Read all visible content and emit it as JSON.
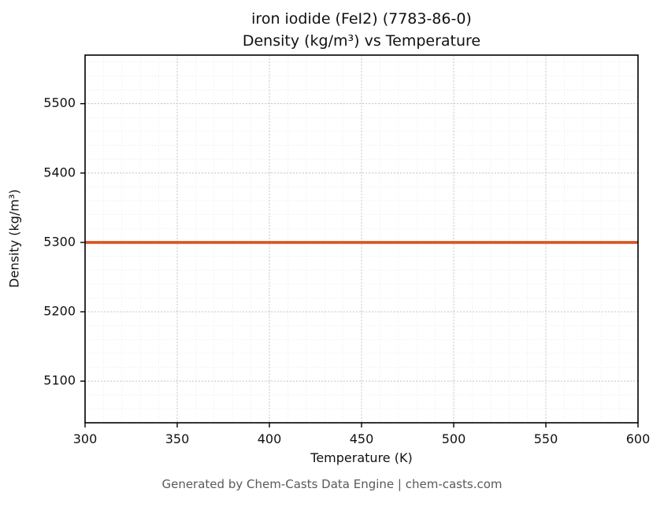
{
  "chart_data": {
    "type": "line",
    "title_line1": "iron iodide (FeI2) (7783-86-0)",
    "title_line2": "Density (kg/m³) vs Temperature",
    "xlabel": "Temperature (K)",
    "ylabel": "Density (kg/m³)",
    "x": [
      300,
      600
    ],
    "series": [
      {
        "name": "Density",
        "values": [
          5300,
          5300
        ]
      }
    ],
    "xlim": [
      300,
      600
    ],
    "ylim": [
      5040,
      5570
    ],
    "xticks": [
      300,
      350,
      400,
      450,
      500,
      550,
      600
    ],
    "yticks": [
      5100,
      5200,
      5300,
      5400,
      5500
    ],
    "x_minor_step": 10,
    "y_minor_step": 20,
    "grid": true,
    "line_color": "#d9541f",
    "spine_color": "#000000",
    "major_grid_color": "#c8c8c8",
    "minor_grid_color": "#e4e4e4",
    "legend_position": "none"
  },
  "footer": {
    "text": "Generated by Chem-Casts Data Engine | chem-casts.com"
  }
}
